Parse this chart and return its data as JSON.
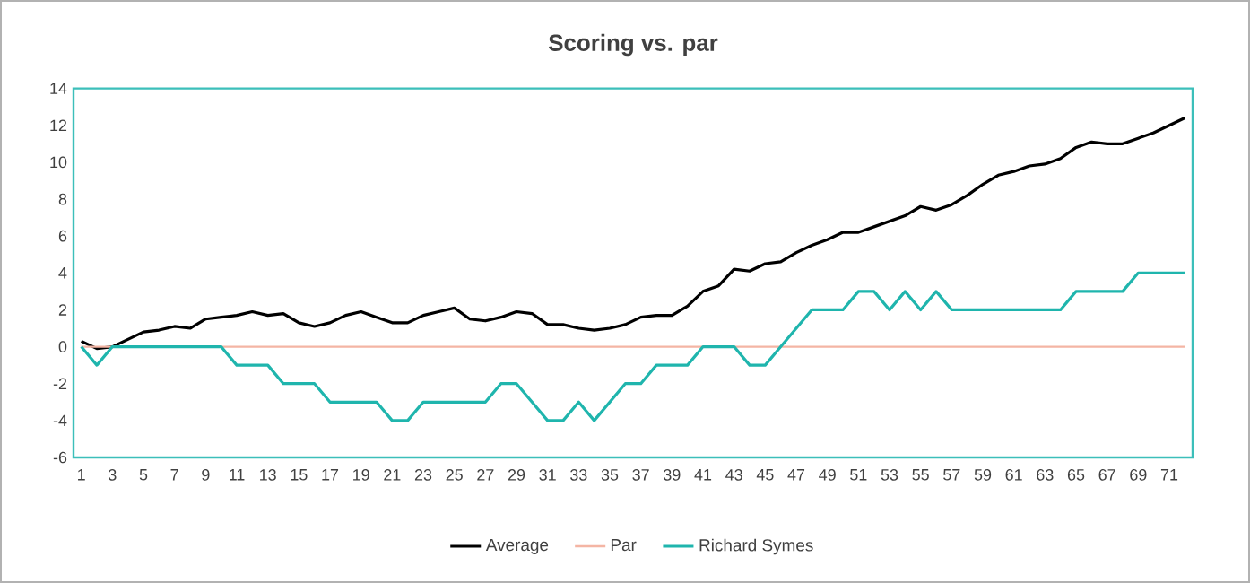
{
  "chart_data": {
    "type": "line",
    "title": "Scoring vs. par",
    "categories": [
      "1",
      null,
      "3",
      null,
      "5",
      null,
      "7",
      null,
      "9",
      null,
      "11",
      null,
      "13",
      null,
      "15",
      null,
      "17",
      null,
      "19",
      null,
      "21",
      null,
      "23",
      null,
      "25",
      null,
      "27",
      null,
      "29",
      null,
      "31",
      null,
      "33",
      null,
      "35",
      null,
      "37",
      null,
      "39",
      null,
      "41",
      null,
      "43",
      null,
      "45",
      null,
      "47",
      null,
      "49",
      null,
      "51",
      null,
      "53",
      null,
      "55",
      null,
      "57",
      null,
      "59",
      null,
      "61",
      null,
      "63",
      null,
      "65",
      null,
      "67",
      null,
      "69",
      null,
      "71",
      null
    ],
    "series": [
      {
        "name": "Average",
        "color": "#000000",
        "values": [
          0.3,
          -0.1,
          0,
          0.4,
          0.8,
          0.9,
          1.1,
          1.0,
          1.5,
          1.6,
          1.7,
          1.9,
          1.7,
          1.8,
          1.3,
          1.1,
          1.3,
          1.7,
          1.9,
          1.6,
          1.3,
          1.3,
          1.7,
          1.9,
          2.1,
          1.5,
          1.4,
          1.6,
          1.9,
          1.8,
          1.2,
          1.2,
          1.0,
          0.9,
          1.0,
          1.2,
          1.6,
          1.7,
          1.7,
          2.2,
          3.0,
          3.3,
          4.2,
          4.1,
          4.5,
          4.6,
          5.1,
          5.5,
          5.8,
          6.2,
          6.2,
          6.5,
          6.8,
          7.1,
          7.6,
          7.4,
          7.7,
          8.2,
          8.8,
          9.3,
          9.5,
          9.8,
          9.9,
          10.2,
          10.8,
          11.1,
          11.0,
          11.0,
          11.3,
          11.6,
          12.0,
          12.4
        ]
      },
      {
        "name": "Par",
        "color": "#f4b5a4",
        "values": [
          0,
          0,
          0,
          0,
          0,
          0,
          0,
          0,
          0,
          0,
          0,
          0,
          0,
          0,
          0,
          0,
          0,
          0,
          0,
          0,
          0,
          0,
          0,
          0,
          0,
          0,
          0,
          0,
          0,
          0,
          0,
          0,
          0,
          0,
          0,
          0,
          0,
          0,
          0,
          0,
          0,
          0,
          0,
          0,
          0,
          0,
          0,
          0,
          0,
          0,
          0,
          0,
          0,
          0,
          0,
          0,
          0,
          0,
          0,
          0,
          0,
          0,
          0,
          0,
          0,
          0,
          0,
          0,
          0,
          0,
          0,
          0
        ]
      },
      {
        "name": "Richard Symes",
        "color": "#1fb5ad",
        "values": [
          0,
          -1,
          0,
          0,
          0,
          0,
          0,
          0,
          0,
          0,
          -1,
          -1,
          -1,
          -2,
          -2,
          -2,
          -3,
          -3,
          -3,
          -3,
          -4,
          -4,
          -3,
          -3,
          -3,
          -3,
          -3,
          -2,
          -2,
          -3,
          -4,
          -4,
          -3,
          -4,
          -3,
          -2,
          -2,
          -1,
          -1,
          -1,
          0,
          0,
          0,
          -1,
          -1,
          0,
          1,
          2,
          2,
          2,
          3,
          3,
          2,
          3,
          2,
          3,
          2,
          2,
          2,
          2,
          2,
          2,
          2,
          2,
          3,
          3,
          3,
          3,
          4,
          4,
          4,
          4
        ]
      }
    ],
    "ylim": [
      -6,
      14
    ],
    "yticks": [
      -6,
      -4,
      -2,
      0,
      2,
      4,
      6,
      8,
      10,
      12,
      14
    ],
    "legend": "bottom"
  }
}
